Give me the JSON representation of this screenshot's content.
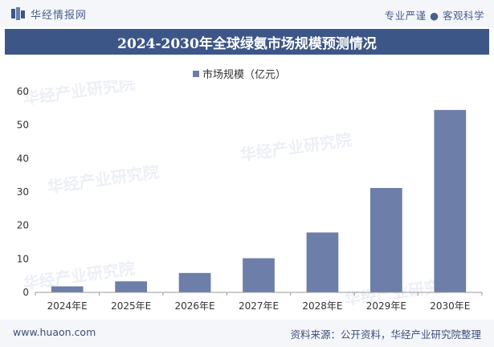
{
  "header": {
    "brand": "华经情报网",
    "tagline": "专业严谨 ● 客观科学"
  },
  "chart_data": {
    "type": "bar",
    "title": "2024-2030年全球绿氨市场规模预测情况",
    "legend": [
      "市场规模（亿元）"
    ],
    "categories": [
      "2024年E",
      "2025年E",
      "2026年E",
      "2027年E",
      "2028年E",
      "2029年E",
      "2030年E"
    ],
    "series": [
      {
        "name": "市场规模（亿元）",
        "values": [
          1.8,
          3.3,
          5.8,
          10.2,
          17.9,
          31.2,
          54.5
        ]
      }
    ],
    "yticks": [
      0,
      10,
      20,
      30,
      40,
      50,
      60
    ],
    "ylim": [
      0,
      60
    ],
    "xlabel": "",
    "ylabel": "",
    "grid": false,
    "bar_color": "#6d7ea8"
  },
  "footer": {
    "website": "www.huaon.com",
    "source": "资料来源：公开资料，华经产业研究院整理"
  }
}
